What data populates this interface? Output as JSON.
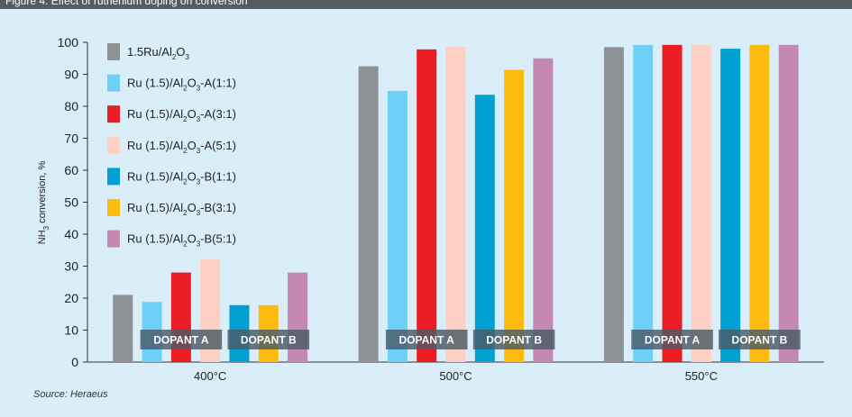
{
  "header": {
    "title": "Figure 4: Effect of ruthenium doping on conversion"
  },
  "source": "Source: Heraeus",
  "chart_data": {
    "type": "bar",
    "categories": [
      "400°C",
      "500°C",
      "550°C"
    ],
    "ylabel": "NH3 conversion, %",
    "ylim": [
      0,
      100
    ],
    "yticks": [
      0,
      10,
      20,
      30,
      40,
      50,
      60,
      70,
      80,
      90,
      100
    ],
    "grid": false,
    "legend_position": "top-left",
    "series": [
      {
        "name": "1.5Ru/Al2O3",
        "color": "#8f9295",
        "values": [
          21,
          92.5,
          98.5
        ]
      },
      {
        "name": "Ru (1.5)/Al2O3-A(1:1)",
        "color": "#6dd0f7",
        "values": [
          18.8,
          84.8,
          99.2
        ]
      },
      {
        "name": "Ru (1.5)/Al2O3-A(3:1)",
        "color": "#ec1c24",
        "values": [
          28,
          97.8,
          99.2
        ]
      },
      {
        "name": "Ru (1.5)/Al2O3-A(5:1)",
        "color": "#fcd1c4",
        "values": [
          32.2,
          98.6,
          99.2
        ]
      },
      {
        "name": "Ru (1.5)/Al2O3-B(1:1)",
        "color": "#00a0d2",
        "values": [
          17.8,
          83.6,
          98
        ]
      },
      {
        "name": "Ru (1.5)/Al2O3-B(3:1)",
        "color": "#fdbb0f",
        "values": [
          17.8,
          91.4,
          99.2
        ]
      },
      {
        "name": "Ru (1.5)/Al2O3-B(5:1)",
        "color": "#c489b1",
        "values": [
          28,
          95,
          99.2
        ]
      }
    ],
    "annotations": {
      "dopant_a": "DOPANT A",
      "dopant_b": "DOPANT B"
    }
  }
}
